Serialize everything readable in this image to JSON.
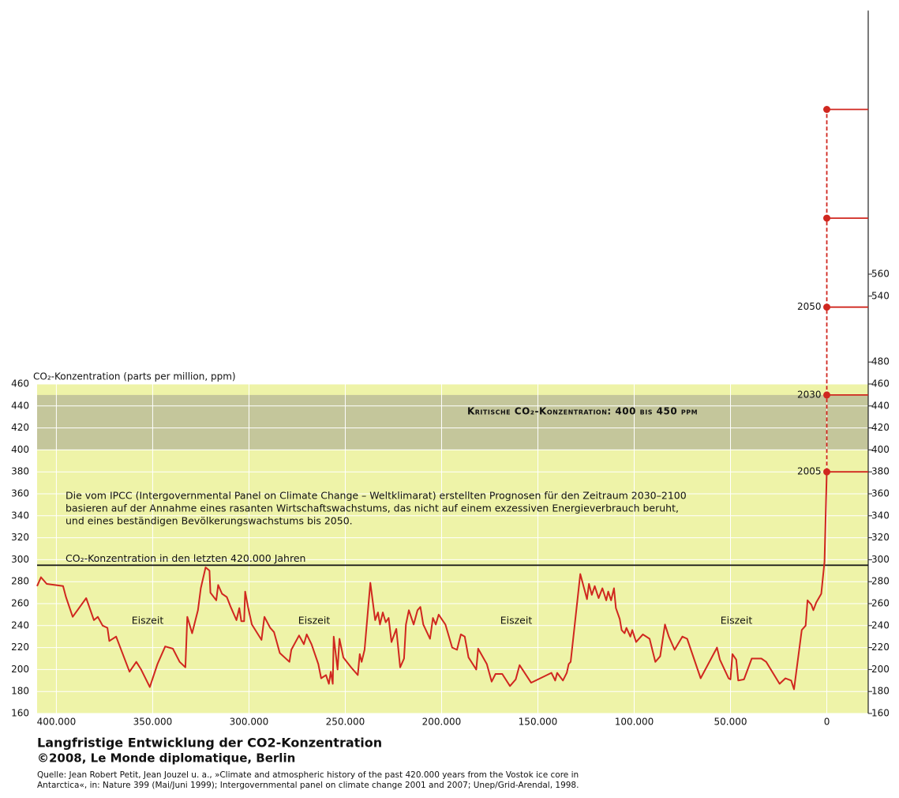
{
  "chart_data": {
    "type": "line",
    "title": "Langfristige Entwicklung der CO2-Konzentration",
    "subtitle": "©2008, Le Monde diplomatique, Berlin",
    "source": [
      "Quelle: Jean Robert Petit, Jean Jouzel u. a., »Climate and atmospheric history of the past 420.000 years from the Vostok ice core in",
      "Antarctica«, in: Nature 399 (Mai/Juni 1999); Intergovernmental panel on climate change 2001 and 2007; Unep/Grid-Arendal, 1998."
    ],
    "y_label": "CO₂-Konzentration (parts per million, ppm)",
    "color": "#d0271f",
    "x": [
      410000,
      408000,
      405000,
      396500,
      395000,
      391500,
      384500,
      380500,
      378500,
      376000,
      373500,
      372500,
      369000,
      362000,
      358500,
      356000,
      351500,
      347500,
      343500,
      339500,
      336000,
      333000,
      332000,
      329500,
      326500,
      325000,
      322500,
      320500,
      320000,
      317000,
      316000,
      314000,
      311500,
      309500,
      306500,
      305000,
      304000,
      302500,
      302000,
      300500,
      298500,
      293500,
      292000,
      289000,
      287000,
      284000,
      279000,
      278000,
      274000,
      271500,
      270000,
      267500,
      264000,
      262500,
      260000,
      258500,
      257500,
      256500,
      256000,
      254000,
      253000,
      251000,
      247000,
      243500,
      242500,
      241500,
      240000,
      237000,
      234500,
      233000,
      232000,
      230500,
      229000,
      227500,
      226000,
      223500,
      221500,
      219500,
      218500,
      217000,
      214500,
      212500,
      211000,
      209500,
      206000,
      204500,
      203000,
      201500,
      198000,
      194500,
      192000,
      190000,
      188000,
      186000,
      182000,
      181000,
      176500,
      174000,
      172000,
      168500,
      164500,
      161500,
      159500,
      153500,
      143000,
      141000,
      140000,
      137000,
      135000,
      134000,
      133000,
      128000,
      124500,
      123500,
      122000,
      120500,
      118500,
      116500,
      114500,
      113500,
      112000,
      110500,
      109500,
      107500,
      106500,
      105000,
      104000,
      102000,
      101000,
      99000,
      95500,
      92000,
      89000,
      86500,
      84000,
      82000,
      79000,
      75000,
      72500,
      65500,
      57000,
      55500,
      51000,
      50000,
      49000,
      47000,
      46000,
      43000,
      39000,
      34000,
      31500,
      24500,
      21500,
      18500,
      17000,
      13000,
      11000,
      10000,
      8000,
      7000,
      5500,
      2900,
      1200,
      0
    ],
    "values": [
      276,
      284,
      278,
      276,
      266,
      248,
      265,
      245,
      248,
      240,
      238,
      226,
      230,
      198,
      207,
      200,
      184,
      205,
      221,
      219,
      207,
      202,
      248,
      233,
      254,
      274,
      293,
      290,
      270,
      263,
      277,
      269,
      266,
      257,
      245,
      256,
      244,
      244,
      271,
      257,
      241,
      227,
      248,
      238,
      234,
      215,
      207,
      218,
      231,
      223,
      232,
      223,
      205,
      192,
      195,
      187,
      198,
      187,
      230,
      200,
      228,
      211,
      202,
      195,
      214,
      207,
      218,
      279,
      245,
      252,
      241,
      252,
      243,
      247,
      225,
      237,
      202,
      210,
      241,
      254,
      241,
      254,
      257,
      241,
      228,
      247,
      241,
      250,
      241,
      220,
      218,
      232,
      230,
      211,
      200,
      219,
      205,
      189,
      196,
      196,
      185,
      191,
      204,
      188,
      197,
      190,
      197,
      190,
      197,
      205,
      207,
      287,
      264,
      278,
      268,
      276,
      265,
      274,
      263,
      271,
      263,
      274,
      256,
      246,
      236,
      233,
      238,
      230,
      236,
      225,
      232,
      228,
      207,
      212,
      241,
      230,
      218,
      230,
      228,
      192,
      220,
      209,
      192,
      191,
      214,
      209,
      190,
      191,
      210,
      210,
      207,
      187,
      192,
      190,
      182,
      236,
      240,
      263,
      259,
      254,
      261,
      269,
      298,
      380
    ],
    "xlim": [
      410000,
      -21500
    ],
    "xticks": [
      {
        "value": 400000,
        "label": "400.000"
      },
      {
        "value": 350000,
        "label": "350.000"
      },
      {
        "value": 300000,
        "label": "300.000"
      },
      {
        "value": 250000,
        "label": "250.000"
      },
      {
        "value": 200000,
        "label": "200.000"
      },
      {
        "value": 150000,
        "label": "150.000"
      },
      {
        "value": 100000,
        "label": "100.000"
      },
      {
        "value": 50000,
        "label": "50.000"
      },
      0
    ],
    "ylim": [
      160,
      460
    ],
    "yticks": [
      160,
      180,
      200,
      220,
      240,
      260,
      280,
      300,
      320,
      340,
      360,
      380,
      400,
      420,
      440,
      460
    ],
    "y2lim": [
      160,
      800
    ],
    "y2ticks": [
      160,
      180,
      200,
      220,
      240,
      260,
      280,
      300,
      320,
      340,
      360,
      380,
      400,
      420,
      440,
      460,
      480,
      540,
      560
    ],
    "grid": true,
    "reference_line": {
      "value": 295,
      "label": "CO₂-Konzentration in den letzten 420.000 Jahren"
    },
    "critical_band": {
      "range": [
        400,
        450
      ],
      "label": "Kritische CO₂-Konzentration: 400 bis 450 ppm"
    },
    "projections": {
      "axis": "y2",
      "values": [
        380,
        450,
        530,
        611,
        710
      ],
      "labels": [
        "2005",
        "2030",
        "2050",
        null,
        null
      ]
    },
    "annotation": [
      "Die vom IPCC (Intergovernmental Panel on Climate Change – Weltklimarat) erstellten Prognosen für den Zeitraum 2030–2100",
      "basieren  auf der Annahme eines rasanten Wirtschaftswachstums, das nicht auf einem exzessiven Energieverbrauch beruht,",
      "und eines beständigen Bevölkerungswachstums bis 2050."
    ],
    "period_labels": [
      "Eiszeit",
      "Eiszeit",
      "Eiszeit",
      "Eiszeit"
    ]
  }
}
